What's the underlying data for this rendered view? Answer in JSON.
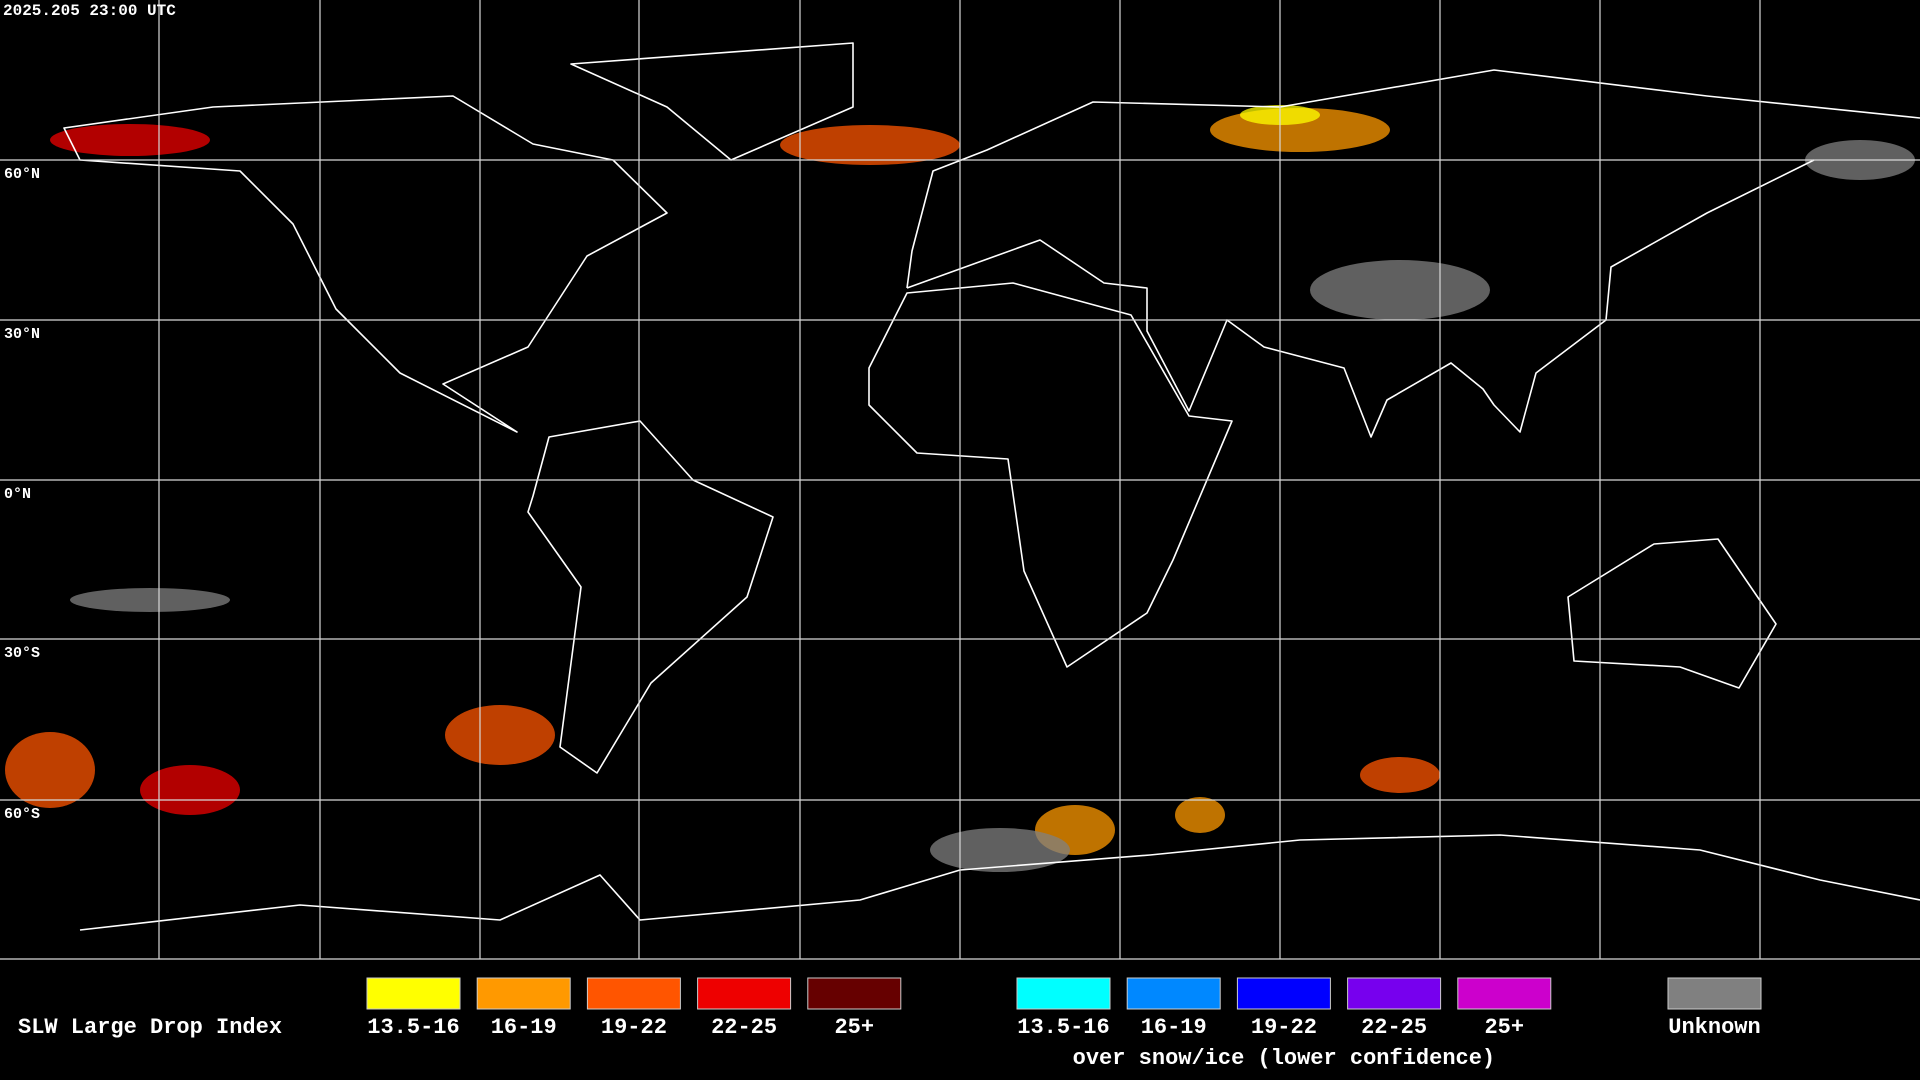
{
  "header": {
    "timestamp": "2025.205 23:00 UTC"
  },
  "map": {
    "latitude_labels": [
      "60°N",
      "30°N",
      "0°N",
      "30°S",
      "60°S"
    ]
  },
  "legend": {
    "title": "SLW Large Drop Index",
    "groups": [
      {
        "items": [
          {
            "label": "13.5-16",
            "color": "#ffff00"
          },
          {
            "label": "16-19",
            "color": "#ff9900"
          },
          {
            "label": "19-22",
            "color": "#ff5500"
          },
          {
            "label": "22-25",
            "color": "#ee0000"
          },
          {
            "label": "25+",
            "color": "#660000"
          }
        ]
      },
      {
        "items": [
          {
            "label": "13.5-16",
            "color": "#00ffff"
          },
          {
            "label": "16-19",
            "color": "#0088ff"
          },
          {
            "label": "19-22",
            "color": "#0000ff"
          },
          {
            "label": "22-25",
            "color": "#7700ee"
          },
          {
            "label": "25+",
            "color": "#cc00cc"
          }
        ],
        "caption": "over snow/ice (lower confidence)"
      }
    ],
    "unknown": {
      "label": "Unknown",
      "color": "#808080"
    }
  }
}
